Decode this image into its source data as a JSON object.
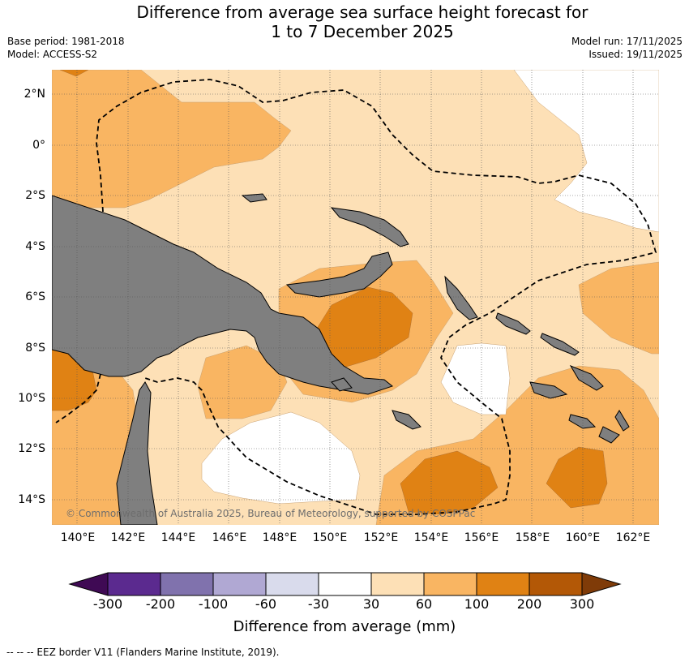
{
  "header": {
    "title_line1": "Difference from average sea surface height forecast for",
    "title_line2": "1 to 7 December 2025",
    "base_period": "Base period: 1981-2018",
    "model": "Model: ACCESS-S2",
    "model_run": "Model run: 17/11/2025",
    "issued": "Issued: 19/11/2025"
  },
  "map": {
    "lat_labels": [
      "2°N",
      "0°",
      "2°S",
      "4°S",
      "6°S",
      "8°S",
      "10°S",
      "12°S",
      "14°S"
    ],
    "lon_labels": [
      "140°E",
      "142°E",
      "144°E",
      "146°E",
      "148°E",
      "150°E",
      "152°E",
      "154°E",
      "156°E",
      "158°E",
      "160°E",
      "162°E"
    ],
    "credit": "© Commonwealth of Australia 2025, Bureau of Meteorology, supported by COSPPac",
    "land_color": "#7f7f7f",
    "eez_border_style": "dashed"
  },
  "colorbar": {
    "label": "Difference from average (mm)",
    "ticks": [
      "-300",
      "-200",
      "-100",
      "-60",
      "-30",
      "30",
      "60",
      "100",
      "200",
      "300"
    ],
    "colors": [
      "#3f0a54",
      "#5b2a8f",
      "#8072ad",
      "#b0a8d3",
      "#d9dbec",
      "#ffffff",
      "#fde0b6",
      "#f9b562",
      "#e08214",
      "#b35806",
      "#7f3b08"
    ]
  },
  "legend_note": "-- -- -- EEZ border V11 (Flanders Marine Institute, 2019)."
}
